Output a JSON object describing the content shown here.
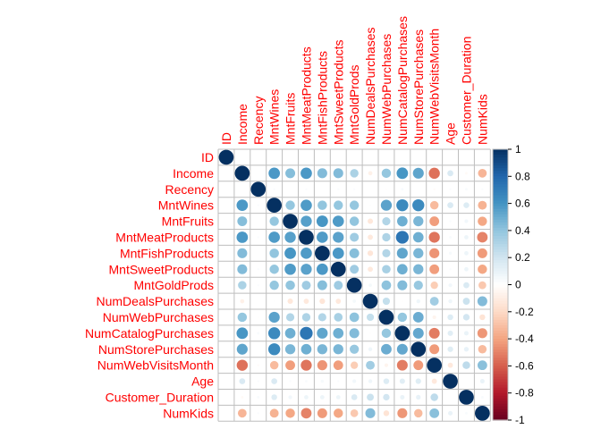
{
  "chart_data": {
    "type": "heatmap",
    "variables": [
      "ID",
      "Income",
      "Recency",
      "MntWines",
      "MntFruits",
      "MntMeatProducts",
      "MntFishProducts",
      "MntSweetProducts",
      "MntGoldProds",
      "NumDealsPurchases",
      "NumWebPurchases",
      "NumCatalogPurchases",
      "NumStorePurchases",
      "NumWebVisitsMonth",
      "Age",
      "Customer_Duration",
      "NumKids"
    ],
    "matrix": [
      [
        1.0,
        0.0,
        0.0,
        0.0,
        0.0,
        0.0,
        0.0,
        0.0,
        0.0,
        0.0,
        0.0,
        0.0,
        0.0,
        0.0,
        0.0,
        0.0,
        0.0
      ],
      [
        0.0,
        1.0,
        0.0,
        0.58,
        0.43,
        0.58,
        0.44,
        0.44,
        0.32,
        -0.08,
        0.39,
        0.59,
        0.53,
        -0.55,
        0.16,
        -0.03,
        -0.34
      ],
      [
        0.0,
        0.0,
        1.0,
        0.02,
        0.0,
        0.02,
        0.0,
        0.02,
        0.02,
        0.0,
        -0.01,
        0.03,
        0.0,
        -0.02,
        0.02,
        0.03,
        0.02
      ],
      [
        0.0,
        0.58,
        0.02,
        1.0,
        0.39,
        0.57,
        0.4,
        0.39,
        0.39,
        0.01,
        0.54,
        0.64,
        0.64,
        -0.32,
        0.16,
        0.15,
        -0.35
      ],
      [
        0.0,
        0.43,
        0.0,
        0.39,
        1.0,
        0.55,
        0.59,
        0.57,
        0.4,
        -0.13,
        0.3,
        0.49,
        0.46,
        -0.42,
        0.02,
        0.06,
        -0.39
      ],
      [
        0.0,
        0.58,
        0.02,
        0.57,
        0.55,
        1.0,
        0.57,
        0.54,
        0.36,
        -0.12,
        0.31,
        0.73,
        0.49,
        -0.54,
        0.03,
        0.08,
        -0.5
      ],
      [
        0.0,
        0.44,
        0.0,
        0.4,
        0.59,
        0.57,
        1.0,
        0.58,
        0.43,
        -0.14,
        0.3,
        0.53,
        0.46,
        -0.45,
        0.04,
        0.08,
        -0.43
      ],
      [
        0.0,
        0.44,
        0.02,
        0.39,
        0.57,
        0.54,
        0.58,
        1.0,
        0.36,
        -0.12,
        0.33,
        0.49,
        0.46,
        -0.42,
        0.02,
        0.08,
        -0.39
      ],
      [
        0.0,
        0.32,
        0.02,
        0.39,
        0.4,
        0.36,
        0.43,
        0.36,
        1.0,
        0.05,
        0.41,
        0.44,
        0.38,
        -0.25,
        0.06,
        0.16,
        -0.27
      ],
      [
        0.0,
        -0.08,
        0.0,
        0.01,
        -0.13,
        -0.12,
        -0.14,
        -0.12,
        0.05,
        1.0,
        0.24,
        -0.01,
        0.07,
        0.35,
        0.07,
        0.22,
        0.44
      ],
      [
        0.0,
        0.39,
        -0.01,
        0.54,
        0.3,
        0.31,
        0.3,
        0.33,
        0.41,
        0.24,
        1.0,
        0.39,
        0.5,
        -0.06,
        0.15,
        0.19,
        -0.15
      ],
      [
        0.0,
        0.59,
        0.03,
        0.64,
        0.49,
        0.73,
        0.53,
        0.49,
        0.44,
        -0.01,
        0.39,
        1.0,
        0.52,
        -0.52,
        0.13,
        0.09,
        -0.44
      ],
      [
        0.0,
        0.53,
        0.0,
        0.64,
        0.46,
        0.49,
        0.46,
        0.46,
        0.38,
        0.07,
        0.5,
        0.52,
        1.0,
        -0.43,
        0.14,
        0.1,
        -0.32
      ],
      [
        0.0,
        -0.55,
        -0.02,
        -0.32,
        -0.42,
        -0.54,
        -0.45,
        -0.42,
        -0.25,
        0.35,
        -0.06,
        -0.52,
        -0.43,
        1.0,
        -0.12,
        0.26,
        0.42
      ],
      [
        0.0,
        0.16,
        0.02,
        0.16,
        0.02,
        0.03,
        0.04,
        0.02,
        0.06,
        0.07,
        0.15,
        0.13,
        0.14,
        -0.12,
        1.0,
        0.0,
        0.09
      ],
      [
        0.0,
        -0.03,
        0.03,
        0.15,
        0.06,
        0.08,
        0.08,
        0.08,
        0.16,
        0.22,
        0.19,
        0.09,
        0.1,
        0.26,
        0.0,
        1.0,
        0.03
      ],
      [
        0.0,
        -0.34,
        0.02,
        -0.35,
        -0.39,
        -0.5,
        -0.43,
        -0.39,
        -0.27,
        0.44,
        -0.15,
        -0.44,
        -0.32,
        0.42,
        0.09,
        0.03,
        1.0
      ]
    ],
    "colorbar": {
      "ticks": [
        "1",
        "0.8",
        "0.6",
        "0.4",
        "0.2",
        "0",
        "-0.2",
        "-0.4",
        "-0.6",
        "-0.8",
        "-1"
      ],
      "range": [
        -1,
        1
      ],
      "colors": [
        "#67001F",
        "#B2182B",
        "#D6604D",
        "#F4A582",
        "#FDDBC7",
        "#FFFFFF",
        "#D1E5F0",
        "#92C5DE",
        "#4393C3",
        "#2166AC",
        "#053061"
      ]
    },
    "label_color": "#FF0000",
    "grid_color": "#BEBEBE"
  }
}
